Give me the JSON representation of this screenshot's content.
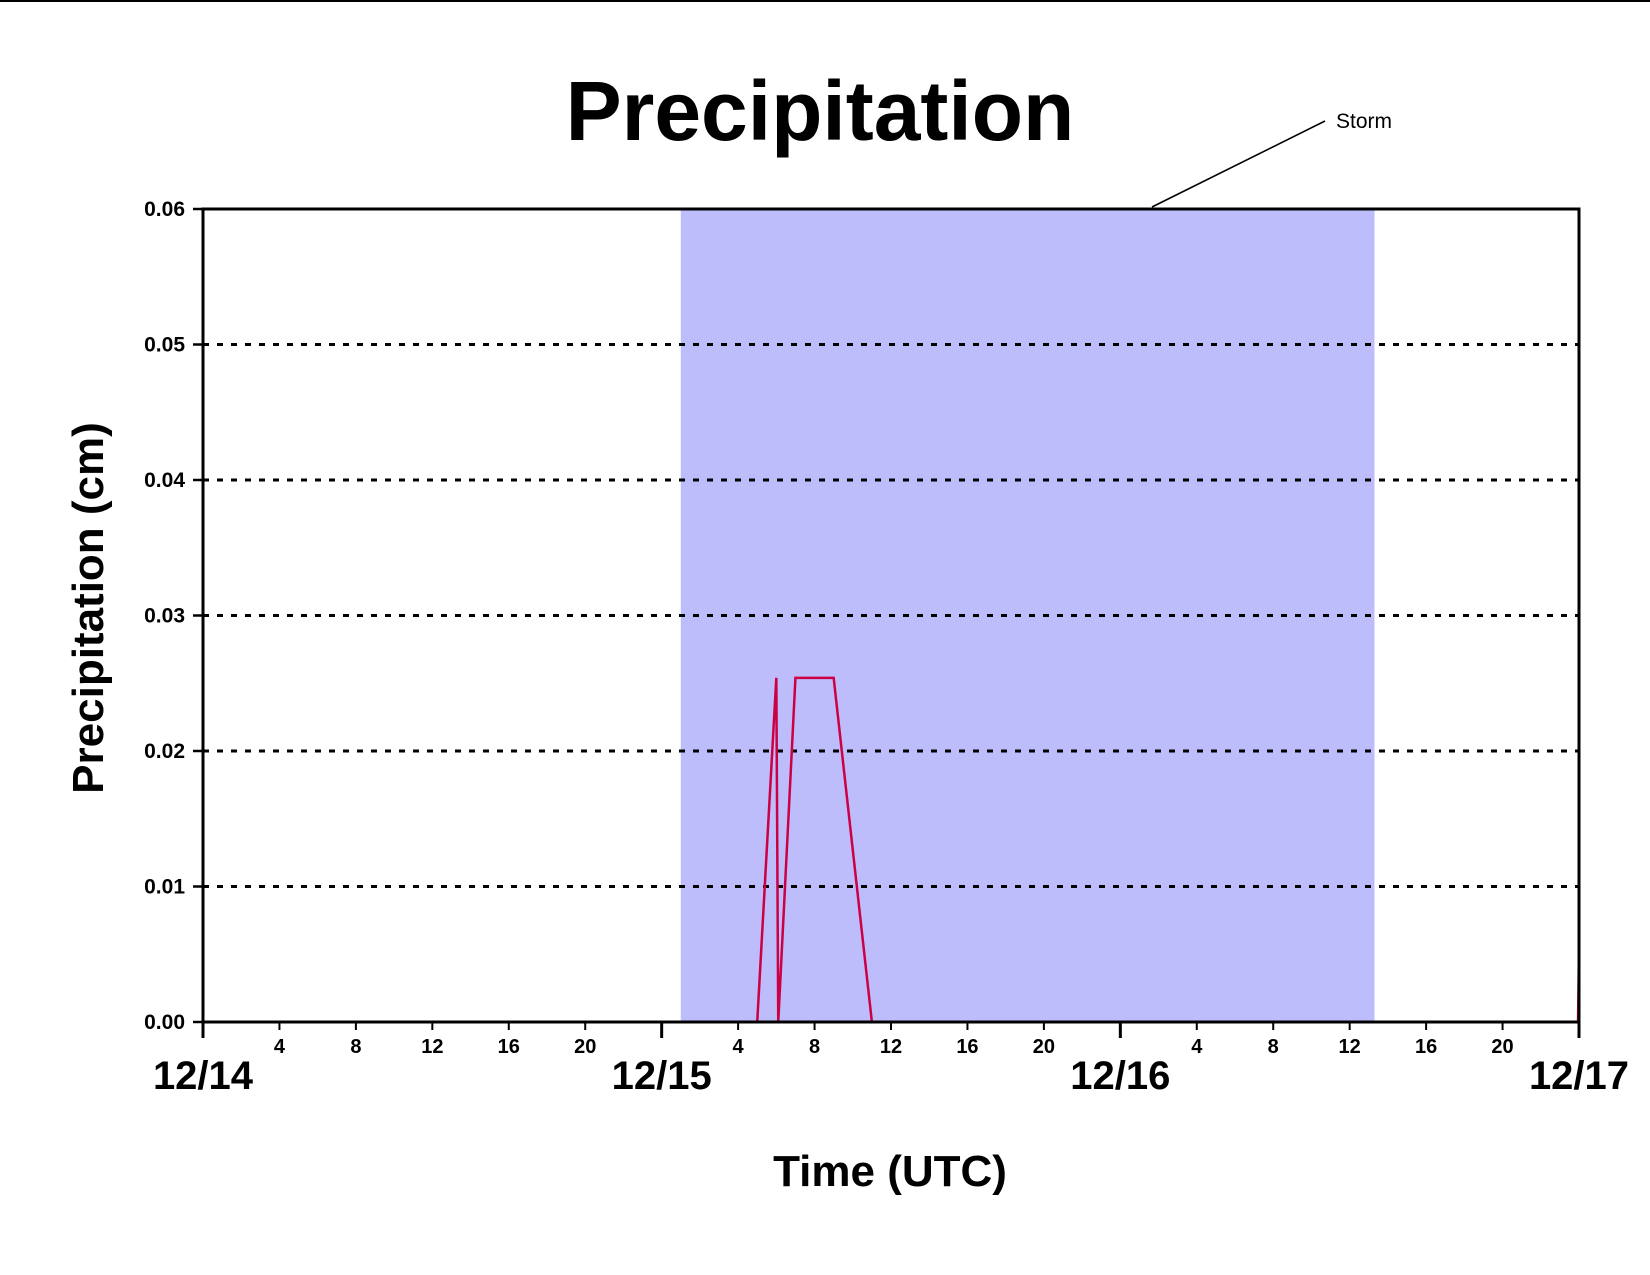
{
  "chart_data": {
    "type": "line",
    "title": "Precipitation",
    "xlabel": "Time (UTC)",
    "ylabel": "Precipitation (cm)",
    "ylim": [
      0,
      0.06
    ],
    "yticks": [
      "0.00",
      "0.01",
      "0.02",
      "0.03",
      "0.04",
      "0.05",
      "0.06"
    ],
    "ytick_values": [
      0,
      0.01,
      0.02,
      0.03,
      0.04,
      0.05,
      0.06
    ],
    "xlim_hours": [
      0,
      72
    ],
    "hour_ticks": [
      {
        "h": 4,
        "label": "4"
      },
      {
        "h": 8,
        "label": "8"
      },
      {
        "h": 12,
        "label": "12"
      },
      {
        "h": 16,
        "label": "16"
      },
      {
        "h": 20,
        "label": "20"
      },
      {
        "h": 28,
        "label": "4"
      },
      {
        "h": 32,
        "label": "8"
      },
      {
        "h": 36,
        "label": "12"
      },
      {
        "h": 40,
        "label": "16"
      },
      {
        "h": 44,
        "label": "20"
      },
      {
        "h": 52,
        "label": "4"
      },
      {
        "h": 56,
        "label": "8"
      },
      {
        "h": 60,
        "label": "12"
      },
      {
        "h": 64,
        "label": "16"
      },
      {
        "h": 68,
        "label": "20"
      }
    ],
    "date_ticks": [
      {
        "h": 0,
        "label": "12/14"
      },
      {
        "h": 24,
        "label": "12/15"
      },
      {
        "h": 48,
        "label": "12/16"
      },
      {
        "h": 72,
        "label": "12/17"
      }
    ],
    "grid": {
      "horizontal": true,
      "style": "dotted"
    },
    "shaded_region": {
      "label": "Storm",
      "start_hour": 25,
      "end_hour": 61.3,
      "color": "#bdbdfb"
    },
    "series": [
      {
        "color": "#cc0044",
        "x_hours": [
          0,
          29.0,
          30.0,
          30.1,
          31.0,
          32.0,
          33.0,
          35.0,
          71.95,
          72
        ],
        "values": [
          0,
          0,
          0.0254,
          0,
          0.0254,
          0.0254,
          0.0254,
          0,
          0,
          0.0054
        ]
      }
    ]
  }
}
